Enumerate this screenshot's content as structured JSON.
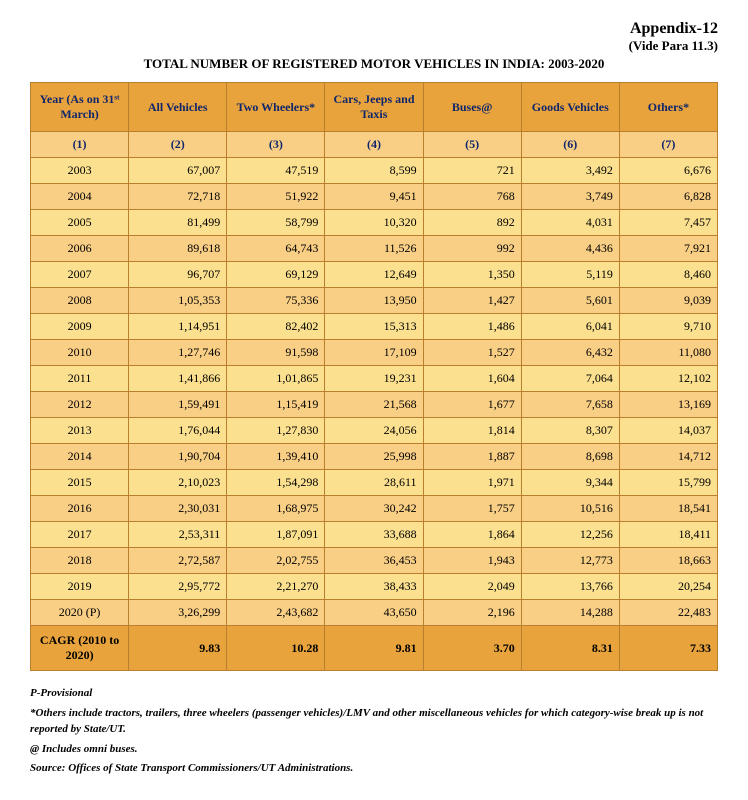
{
  "header": {
    "appendix": "Appendix-12",
    "vide": "(Vide Para 11.3)",
    "title": "TOTAL NUMBER OF REGISTERED MOTOR VEHICLES IN INDIA: 2003-2020"
  },
  "table": {
    "columns": [
      "Year (As on 31ˢᵗ March)",
      "All Vehicles",
      "Two Wheelers*",
      "Cars, Jeeps and Taxis",
      "Buses@",
      "Goods Vehicles",
      "Others*"
    ],
    "colnums": [
      "(1)",
      "(2)",
      "(3)",
      "(4)",
      "(5)",
      "(6)",
      "(7)"
    ],
    "rows": [
      [
        "2003",
        "67,007",
        "47,519",
        "8,599",
        "721",
        "3,492",
        "6,676"
      ],
      [
        "2004",
        "72,718",
        "51,922",
        "9,451",
        "768",
        "3,749",
        "6,828"
      ],
      [
        "2005",
        "81,499",
        "58,799",
        "10,320",
        "892",
        "4,031",
        "7,457"
      ],
      [
        "2006",
        "89,618",
        "64,743",
        "11,526",
        "992",
        "4,436",
        "7,921"
      ],
      [
        "2007",
        "96,707",
        "69,129",
        "12,649",
        "1,350",
        "5,119",
        "8,460"
      ],
      [
        "2008",
        "1,05,353",
        "75,336",
        "13,950",
        "1,427",
        "5,601",
        "9,039"
      ],
      [
        "2009",
        "1,14,951",
        "82,402",
        "15,313",
        "1,486",
        "6,041",
        "9,710"
      ],
      [
        "2010",
        "1,27,746",
        "91,598",
        "17,109",
        "1,527",
        "6,432",
        "11,080"
      ],
      [
        "2011",
        "1,41,866",
        "1,01,865",
        "19,231",
        "1,604",
        "7,064",
        "12,102"
      ],
      [
        "2012",
        "1,59,491",
        "1,15,419",
        "21,568",
        "1,677",
        "7,658",
        "13,169"
      ],
      [
        "2013",
        "1,76,044",
        "1,27,830",
        "24,056",
        "1,814",
        "8,307",
        "14,037"
      ],
      [
        "2014",
        "1,90,704",
        "1,39,410",
        "25,998",
        "1,887",
        "8,698",
        "14,712"
      ],
      [
        "2015",
        "2,10,023",
        "1,54,298",
        "28,611",
        "1,971",
        "9,344",
        "15,799"
      ],
      [
        "2016",
        "2,30,031",
        "1,68,975",
        "30,242",
        "1,757",
        "10,516",
        "18,541"
      ],
      [
        "2017",
        "2,53,311",
        "1,87,091",
        "33,688",
        "1,864",
        "12,256",
        "18,411"
      ],
      [
        "2018",
        "2,72,587",
        "2,02,755",
        "36,453",
        "1,943",
        "12,773",
        "18,663"
      ],
      [
        "2019",
        "2,95,772",
        "2,21,270",
        "38,433",
        "2,049",
        "13,766",
        "20,254"
      ],
      [
        "2020 (P)",
        "3,26,299",
        "2,43,682",
        "43,650",
        "2,196",
        "14,288",
        "22,483"
      ]
    ],
    "cagr": [
      "CAGR (2010 to 2020)",
      "9.83",
      "10.28",
      "9.81",
      "3.70",
      "8.31",
      "7.33"
    ]
  },
  "footnotes": {
    "p": "P-Provisional",
    "others": "*Others include tractors, trailers, three wheelers (passenger vehicles)/LMV and other miscellaneous vehicles for which category-wise break up is not reported by State/UT.",
    "buses": "@ Includes omni buses.",
    "source": "Source: Offices of State Transport Commissioners/UT Administrations."
  },
  "style": {
    "header_bg": "#e8a33d",
    "row_odd_bg": "#f9cf86",
    "row_even_bg": "#fbe08f",
    "border_color": "#b97f2e",
    "header_text_color": "#10266b"
  }
}
